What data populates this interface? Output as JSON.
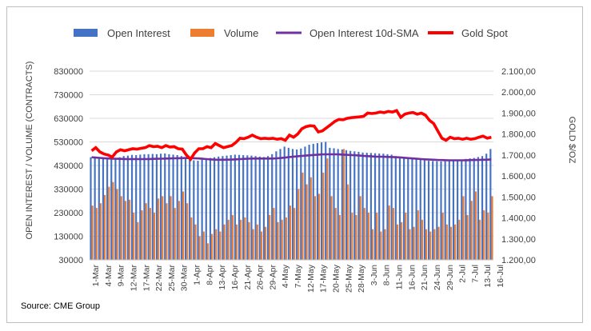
{
  "source": "Source: CME Group",
  "chart_data": {
    "type": "bar",
    "legend": [
      "Open Interest",
      "Volume",
      "Open Interest 10d-SMA",
      "Gold Spot"
    ],
    "legend_position": "top",
    "colors": {
      "open_interest": "#4472c4",
      "volume": "#ed7d31",
      "sma": "#7030a0",
      "gold": "#ff0000",
      "grid": "#d9d9d9"
    },
    "ylabel_left": "OPEN INTEREST / VOLUME (CONTRACTS)",
    "ylabel_right": "GOLD $/OZ",
    "yticks_left": [
      "830000",
      "730000",
      "630000",
      "530000",
      "430000",
      "330000",
      "230000",
      "130000",
      "30000"
    ],
    "yticks_right": [
      "2.100,00",
      "2.000,00",
      "1.900,00",
      "1.800,00",
      "1.700,00",
      "1.600,00",
      "1.500,00",
      "1.400,00",
      "1.300,00",
      "1.200,00"
    ],
    "ylim_left": [
      30000,
      830000
    ],
    "ylim_right": [
      1200,
      2100
    ],
    "x_tick_labels": [
      "1-Mar",
      "4-Mar",
      "9-Mar",
      "12-Mar",
      "17-Mar",
      "22-Mar",
      "25-Mar",
      "30-Mar",
      "1-Apr",
      "8-Apr",
      "13-Apr",
      "16-Apr",
      "21-Apr",
      "26-Apr",
      "29-Apr",
      "4-May",
      "7-May",
      "12-May",
      "17-May",
      "20-May",
      "25-May",
      "28-May",
      "3-Jun",
      "8-Jun",
      "11-Jun",
      "16-Jun",
      "21-Jun",
      "24-Jun",
      "29-Jun",
      "2-Jul",
      "7-Jul",
      "13-Jul",
      "16-Jul"
    ],
    "n_days": 98,
    "open_interest": [
      465000,
      463000,
      460000,
      458000,
      456000,
      460000,
      462000,
      465000,
      470000,
      472000,
      475000,
      474000,
      476000,
      478000,
      478000,
      479000,
      478000,
      480000,
      481000,
      478000,
      476000,
      474000,
      470000,
      460000,
      455000,
      452000,
      450000,
      455000,
      460000,
      462000,
      465000,
      468000,
      470000,
      472000,
      474000,
      476000,
      475000,
      474000,
      473000,
      472000,
      470000,
      468000,
      466000,
      470000,
      478000,
      490000,
      500000,
      510000,
      505000,
      500000,
      498000,
      502000,
      510000,
      518000,
      522000,
      525000,
      528000,
      530000,
      505000,
      503000,
      500000,
      498000,
      495000,
      492000,
      490000,
      488000,
      485000,
      484000,
      483000,
      482000,
      481000,
      480000,
      478000,
      476000,
      470000,
      465000,
      462000,
      460000,
      458000,
      456000,
      454000,
      452000,
      450000,
      449000,
      448000,
      447000,
      448000,
      449000,
      450000,
      452000,
      455000,
      458000,
      460000,
      462000,
      466000,
      470000,
      480000,
      500000
    ],
    "volume": [
      260000,
      250000,
      270000,
      305000,
      340000,
      360000,
      330000,
      300000,
      280000,
      285000,
      230000,
      190000,
      240000,
      270000,
      250000,
      230000,
      290000,
      300000,
      270000,
      300000,
      250000,
      280000,
      320000,
      270000,
      210000,
      180000,
      130000,
      150000,
      100000,
      140000,
      160000,
      150000,
      180000,
      200000,
      220000,
      180000,
      200000,
      210000,
      190000,
      160000,
      180000,
      150000,
      170000,
      220000,
      250000,
      190000,
      200000,
      210000,
      260000,
      250000,
      330000,
      400000,
      350000,
      380000,
      300000,
      310000,
      400000,
      460000,
      300000,
      250000,
      220000,
      500000,
      350000,
      230000,
      220000,
      300000,
      250000,
      230000,
      160000,
      230000,
      150000,
      160000,
      260000,
      250000,
      180000,
      190000,
      230000,
      160000,
      170000,
      240000,
      200000,
      160000,
      150000,
      160000,
      170000,
      230000,
      180000,
      170000,
      180000,
      200000,
      300000,
      220000,
      280000,
      320000,
      200000,
      240000,
      230000,
      300000
    ],
    "sma": [
      1.0,
      0.997,
      0.994,
      0.991,
      0.989,
      0.987,
      0.986,
      0.985,
      0.984,
      0.983,
      0.983,
      0.983,
      0.983,
      0.983,
      0.984,
      0.985,
      0.986,
      0.987,
      0.988,
      0.989,
      0.99,
      0.991,
      0.992,
      0.993,
      0.992,
      0.991,
      0.989,
      0.986,
      0.983,
      0.98,
      0.978,
      0.977,
      0.977,
      0.978,
      0.979,
      0.981,
      0.983,
      0.985,
      0.987,
      0.988,
      0.988,
      0.988,
      0.988,
      0.988,
      0.988,
      0.99,
      0.993,
      0.997,
      1.002,
      1.006,
      1.009,
      1.012,
      1.015,
      1.018,
      1.021,
      1.024,
      1.026,
      1.027,
      1.027,
      1.027,
      1.026,
      1.024,
      1.022,
      1.02,
      1.018,
      1.015,
      1.012,
      1.01,
      1.008,
      1.006,
      1.005,
      1.004,
      1.003,
      1.002,
      1.0,
      0.998,
      0.995,
      0.992,
      0.989,
      0.986,
      0.983,
      0.981,
      0.979,
      0.977,
      0.975,
      0.974,
      0.973,
      0.972,
      0.972,
      0.972,
      0.972,
      0.973,
      0.974,
      0.975,
      0.976,
      0.977,
      0.978,
      0.98
    ],
    "gold": [
      1720,
      1735,
      1715,
      1705,
      1700,
      1690,
      1715,
      1725,
      1720,
      1725,
      1730,
      1728,
      1732,
      1735,
      1745,
      1740,
      1742,
      1735,
      1745,
      1738,
      1740,
      1730,
      1728,
      1700,
      1680,
      1710,
      1730,
      1730,
      1740,
      1735,
      1755,
      1745,
      1735,
      1740,
      1745,
      1760,
      1780,
      1778,
      1785,
      1795,
      1785,
      1778,
      1780,
      1778,
      1780,
      1775,
      1778,
      1770,
      1795,
      1785,
      1800,
      1825,
      1835,
      1840,
      1838,
      1810,
      1815,
      1830,
      1845,
      1860,
      1870,
      1868,
      1875,
      1878,
      1880,
      1882,
      1885,
      1900,
      1898,
      1900,
      1905,
      1902,
      1908,
      1905,
      1912,
      1880,
      1895,
      1900,
      1903,
      1895,
      1900,
      1890,
      1865,
      1850,
      1815,
      1780,
      1770,
      1785,
      1778,
      1780,
      1775,
      1780,
      1775,
      1778,
      1785,
      1790,
      1780,
      1785
    ],
    "sma_axis_note": "",
    "sma_base": 465000
  }
}
